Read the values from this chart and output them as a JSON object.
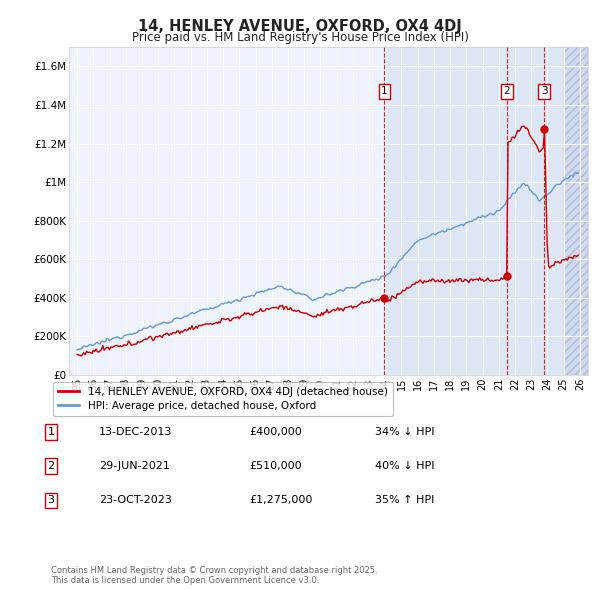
{
  "title": "14, HENLEY AVENUE, OXFORD, OX4 4DJ",
  "subtitle": "Price paid vs. HM Land Registry's House Price Index (HPI)",
  "ylim": [
    0,
    1700000
  ],
  "yticks": [
    0,
    200000,
    400000,
    600000,
    800000,
    1000000,
    1200000,
    1400000,
    1600000
  ],
  "ytick_labels": [
    "£0",
    "£200K",
    "£400K",
    "£600K",
    "£800K",
    "£1M",
    "£1.2M",
    "£1.4M",
    "£1.6M"
  ],
  "background_color": "#ffffff",
  "plot_bg_color": "#eef2fa",
  "grid_color": "#ffffff",
  "hatch_color": "#d0daee",
  "highlight_bg": "#dce6f5",
  "red_line_color": "#cc0000",
  "blue_line_color": "#6699cc",
  "vline_color": "#cc0000",
  "legend_label_red": "14, HENLEY AVENUE, OXFORD, OX4 4DJ (detached house)",
  "legend_label_blue": "HPI: Average price, detached house, Oxford",
  "transactions": [
    {
      "label": "1",
      "x_year": 2013.95
    },
    {
      "label": "2",
      "x_year": 2021.49
    },
    {
      "label": "3",
      "x_year": 2023.81
    }
  ],
  "table_rows": [
    {
      "num": "1",
      "date": "13-DEC-2013",
      "price": "£400,000",
      "pct": "34% ↓ HPI"
    },
    {
      "num": "2",
      "date": "29-JUN-2021",
      "price": "£510,000",
      "pct": "40% ↓ HPI"
    },
    {
      "num": "3",
      "date": "23-OCT-2023",
      "price": "£1,275,000",
      "pct": "35% ↑ HPI"
    }
  ],
  "footnote": "Contains HM Land Registry data © Crown copyright and database right 2025.\nThis data is licensed under the Open Government Licence v3.0.",
  "xlim_start": 1994.5,
  "xlim_end": 2026.5,
  "xticks": [
    1995,
    1996,
    1997,
    1998,
    1999,
    2000,
    2001,
    2002,
    2003,
    2004,
    2005,
    2006,
    2007,
    2008,
    2009,
    2010,
    2011,
    2012,
    2013,
    2014,
    2015,
    2016,
    2017,
    2018,
    2019,
    2020,
    2021,
    2022,
    2023,
    2024,
    2025,
    2026
  ],
  "future_start": 2025.0,
  "sale1_x": 2013.95,
  "sale1_y": 400000,
  "sale2_x": 2021.49,
  "sale2_y": 510000,
  "sale3_x": 2023.81,
  "sale3_y": 1275000
}
